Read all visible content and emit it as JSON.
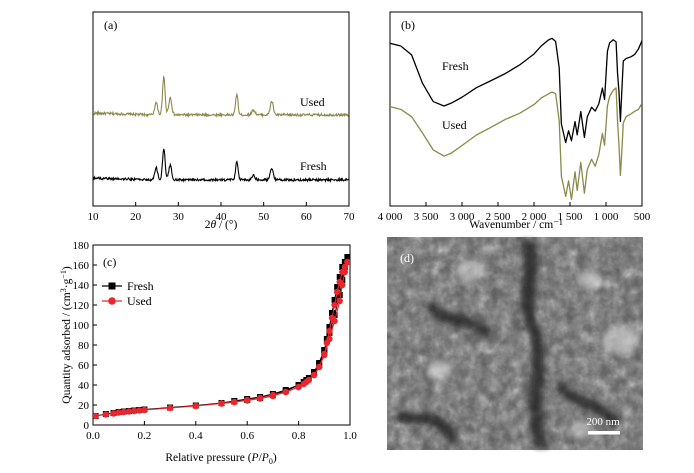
{
  "colors": {
    "fresh_line": "#000000",
    "used_line_xrd_ir": "#8b8a4a",
    "bet_fresh": "#000000",
    "bet_used": "#e8262d",
    "sem_base": "#6a6a6a"
  },
  "chart_data": [
    {
      "id": "a",
      "panel_label": "(a)",
      "type": "line",
      "xlabel_prefix": "2",
      "xlabel_theta": "θ",
      "xlabel_suffix": " / (°)",
      "ylabel": "",
      "xlim": [
        10,
        70
      ],
      "x_ticks": [
        10,
        20,
        30,
        40,
        50,
        60,
        70
      ],
      "y_ticks_shown": false,
      "baseline_offset": {
        "Fresh": 0,
        "Used": 1
      },
      "series": [
        {
          "name": "Used",
          "color": "#8b8a4a",
          "noise": 0.055,
          "baseline": 0.05,
          "peaks": [
            [
              24.8,
              0.55,
              0.35
            ],
            [
              26.6,
              1.7,
              0.3
            ],
            [
              28.1,
              0.78,
              0.35
            ],
            [
              43.7,
              0.95,
              0.28
            ],
            [
              47.6,
              0.22,
              0.4
            ],
            [
              51.9,
              0.62,
              0.35
            ]
          ]
        },
        {
          "name": "Fresh",
          "color": "#000000",
          "noise": 0.055,
          "baseline": 0.05,
          "peaks": [
            [
              24.8,
              0.55,
              0.35
            ],
            [
              26.6,
              1.4,
              0.3
            ],
            [
              28.1,
              0.65,
              0.35
            ],
            [
              43.7,
              0.85,
              0.28
            ],
            [
              47.6,
              0.2,
              0.4
            ],
            [
              51.9,
              0.55,
              0.35
            ]
          ]
        }
      ]
    },
    {
      "id": "b",
      "panel_label": "(b)",
      "type": "line",
      "xlabel": "Wavenumber / cm⁻¹",
      "ylabel": "",
      "x_reversed": true,
      "xlim": [
        4000,
        500
      ],
      "x_ticks": [
        4000,
        3500,
        3000,
        2500,
        2000,
        1500,
        1000,
        500
      ],
      "x_tick_labels": [
        "4 000",
        "3 500",
        "3 000",
        "2 500",
        "2 000",
        "1 500",
        "1 000",
        "500"
      ],
      "y_ticks_shown": false,
      "series": [
        {
          "name": "Fresh",
          "color": "#000000",
          "x": [
            4000,
            3850,
            3700,
            3550,
            3400,
            3250,
            3150,
            3000,
            2800,
            2600,
            2400,
            2200,
            2000,
            1900,
            1800,
            1750,
            1700,
            1650,
            1620,
            1560,
            1520,
            1480,
            1430,
            1400,
            1350,
            1300,
            1260,
            1200,
            1150,
            1100,
            1050,
            1020,
            980,
            950,
            900,
            860,
            840,
            820,
            800,
            780,
            760,
            720,
            650,
            600,
            550,
            500
          ],
          "y": [
            0.95,
            0.93,
            0.85,
            0.62,
            0.46,
            0.43,
            0.45,
            0.5,
            0.58,
            0.64,
            0.7,
            0.77,
            0.86,
            0.93,
            0.98,
            0.99,
            0.97,
            0.75,
            0.28,
            0.12,
            0.22,
            0.14,
            0.3,
            0.18,
            0.38,
            0.16,
            0.34,
            0.42,
            0.38,
            0.44,
            0.58,
            0.48,
            0.88,
            0.95,
            0.98,
            0.96,
            0.7,
            0.55,
            0.3,
            0.55,
            0.8,
            0.82,
            0.84,
            0.86,
            0.9,
            0.97
          ]
        },
        {
          "name": "Used",
          "color": "#8b8a4a",
          "x": [
            4000,
            3850,
            3700,
            3550,
            3400,
            3250,
            3150,
            3000,
            2800,
            2600,
            2400,
            2200,
            2000,
            1900,
            1800,
            1750,
            1700,
            1650,
            1620,
            1560,
            1520,
            1480,
            1430,
            1400,
            1350,
            1300,
            1260,
            1200,
            1150,
            1100,
            1050,
            1020,
            980,
            950,
            900,
            860,
            840,
            820,
            800,
            780,
            760,
            720,
            650,
            600,
            550,
            500
          ],
          "y": [
            0.42,
            0.4,
            0.34,
            0.2,
            0.06,
            0.01,
            0.03,
            0.1,
            0.18,
            0.25,
            0.31,
            0.37,
            0.44,
            0.49,
            0.53,
            0.54,
            0.53,
            0.3,
            -0.16,
            -0.33,
            -0.2,
            -0.35,
            -0.12,
            -0.28,
            -0.05,
            -0.3,
            -0.1,
            -0.02,
            -0.08,
            0.02,
            0.2,
            0.1,
            0.43,
            0.5,
            0.56,
            0.58,
            0.3,
            0.1,
            -0.16,
            0.05,
            0.28,
            0.34,
            0.36,
            0.38,
            0.4,
            0.45
          ]
        }
      ],
      "annotations": [
        "Fresh",
        "Used"
      ]
    },
    {
      "id": "c",
      "panel_label": "(c)",
      "type": "line",
      "xlabel_prefix": "Relative pressure (",
      "xlabel_p": "P",
      "xlabel_slash": "/",
      "xlabel_p0": "P",
      "xlabel_sub": "0",
      "xlabel_suffix": ")",
      "ylabel_main": "Quantity adsorbed / (cm",
      "ylabel_sup1": "3",
      "ylabel_mid": "·g",
      "ylabel_sup2": "−1",
      "ylabel_end": ")",
      "xlim": [
        0.0,
        1.0
      ],
      "ylim": [
        0,
        180
      ],
      "x_ticks": [
        0.0,
        0.2,
        0.4,
        0.6,
        0.8,
        1.0
      ],
      "x_tick_labels": [
        "0.0",
        "0.2",
        "0.4",
        "0.6",
        "0.8",
        "1.0"
      ],
      "y_ticks": [
        0,
        20,
        40,
        60,
        80,
        100,
        120,
        140,
        160,
        180
      ],
      "legend_placement": "top-left",
      "series": [
        {
          "name": "Fresh",
          "color": "#000000",
          "marker": "square",
          "adsorption": {
            "x": [
              0.01,
              0.05,
              0.08,
              0.1,
              0.12,
              0.14,
              0.16,
              0.18,
              0.2,
              0.3,
              0.4,
              0.5,
              0.55,
              0.6,
              0.65,
              0.7,
              0.75,
              0.8,
              0.83,
              0.86,
              0.88,
              0.9,
              0.92,
              0.94,
              0.96,
              0.97,
              0.98,
              0.99
            ],
            "y": [
              9,
              11,
              12,
              13,
              13.5,
              14,
              14.5,
              15,
              15.5,
              17.5,
              19.5,
              22,
              23.5,
              25,
              27,
              30,
              34,
              40,
              45,
              53,
              62,
              75,
              92,
              110,
              130,
              145,
              158,
              168
            ]
          },
          "desorption": {
            "x": [
              0.99,
              0.98,
              0.97,
              0.96,
              0.95,
              0.94,
              0.93,
              0.92,
              0.91,
              0.9,
              0.88,
              0.86,
              0.84,
              0.82,
              0.8,
              0.75,
              0.7,
              0.65,
              0.6,
              0.55,
              0.5
            ],
            "y": [
              168,
              163,
              158,
              148,
              138,
              125,
              112,
              98,
              86,
              74,
              60,
              52,
              47,
              43,
              40,
              35,
              31,
              28,
              26,
              24,
              22
            ]
          }
        },
        {
          "name": "Used",
          "color": "#e8262d",
          "marker": "circle",
          "adsorption": {
            "x": [
              0.01,
              0.05,
              0.08,
              0.1,
              0.12,
              0.14,
              0.16,
              0.18,
              0.2,
              0.3,
              0.4,
              0.5,
              0.55,
              0.6,
              0.65,
              0.7,
              0.75,
              0.8,
              0.83,
              0.86,
              0.88,
              0.9,
              0.92,
              0.94,
              0.96,
              0.97,
              0.98,
              0.99
            ],
            "y": [
              9,
              10.5,
              11.5,
              12.5,
              13,
              13.5,
              14,
              14.5,
              15,
              17,
              19,
              21.5,
              23,
              24.5,
              26.5,
              29,
              33,
              38,
              43,
              50,
              58,
              70,
              86,
              104,
              124,
              140,
              153,
              163
            ]
          },
          "desorption": {
            "x": [
              0.99,
              0.98,
              0.97,
              0.96,
              0.95,
              0.94,
              0.93,
              0.92,
              0.91,
              0.9,
              0.88,
              0.86,
              0.84,
              0.82,
              0.8,
              0.75,
              0.7,
              0.65,
              0.6,
              0.55,
              0.5
            ],
            "y": [
              163,
              158,
              153,
              143,
              133,
              120,
              107,
              94,
              82,
              71,
              58,
              50,
              45,
              41,
              38,
              33,
              30,
              27,
              25,
              23,
              21.5
            ]
          }
        }
      ]
    }
  ],
  "sem": {
    "panel_label": "(d)",
    "scale_bar_label": "200 nm"
  }
}
